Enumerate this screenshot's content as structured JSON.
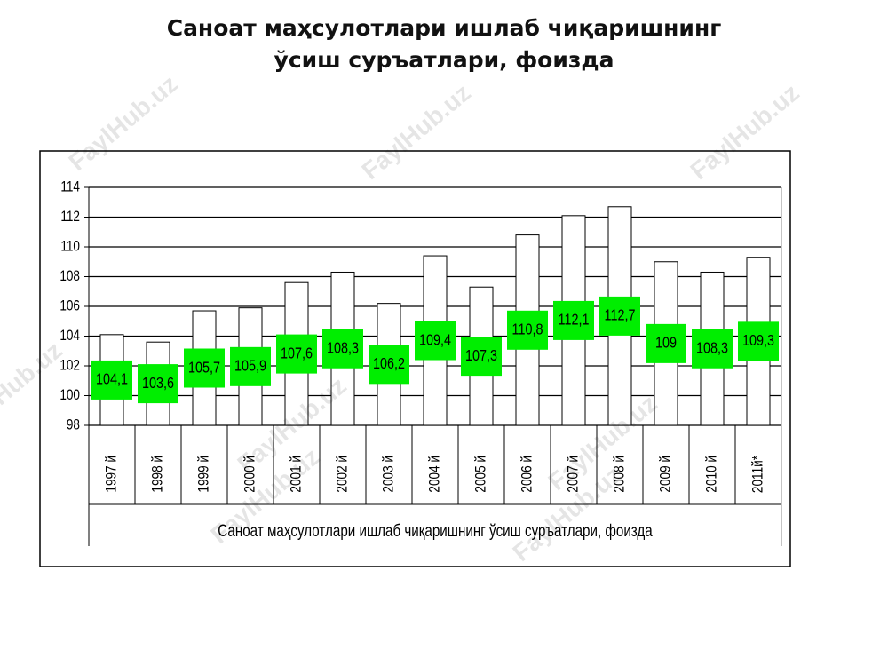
{
  "chart_data": {
    "type": "bar",
    "title": "Саноат маҳсулотлари ишлаб чиқаришнинг ўсиш суръатлари, фоизда",
    "x_label": "Саноат маҳсулотлари  ишлаб чиқаришнинг ўсиш суръатлари, фоизда",
    "watermark": "FaylHub.uz",
    "categories": [
      "1997 й",
      "1998 й",
      "1999 й",
      "2000 й",
      "2001 й",
      "2002 й",
      "2003 й",
      "2004 й",
      "2005 й",
      "2006 й",
      "2007 й",
      "2008 й",
      "2009 й",
      "2010 й",
      "2011й*"
    ],
    "values": [
      104.1,
      103.6,
      105.7,
      105.9,
      107.6,
      108.3,
      106.2,
      109.4,
      107.3,
      110.8,
      112.1,
      112.7,
      109,
      108.3,
      109.3
    ],
    "value_labels": [
      "104,1",
      "103,6",
      "105,7",
      "105,9",
      "107,6",
      "108,3",
      "106,2",
      "109,4",
      "107,3",
      "110,8",
      "112,1",
      "112,7",
      "109",
      "108,3",
      "109,3"
    ],
    "color": "#ffffff",
    "label_color": "#00ee00",
    "ylim": [
      98,
      114
    ],
    "yticks": [
      98,
      100,
      102,
      104,
      106,
      108,
      110,
      112,
      114
    ],
    "grid": true
  }
}
